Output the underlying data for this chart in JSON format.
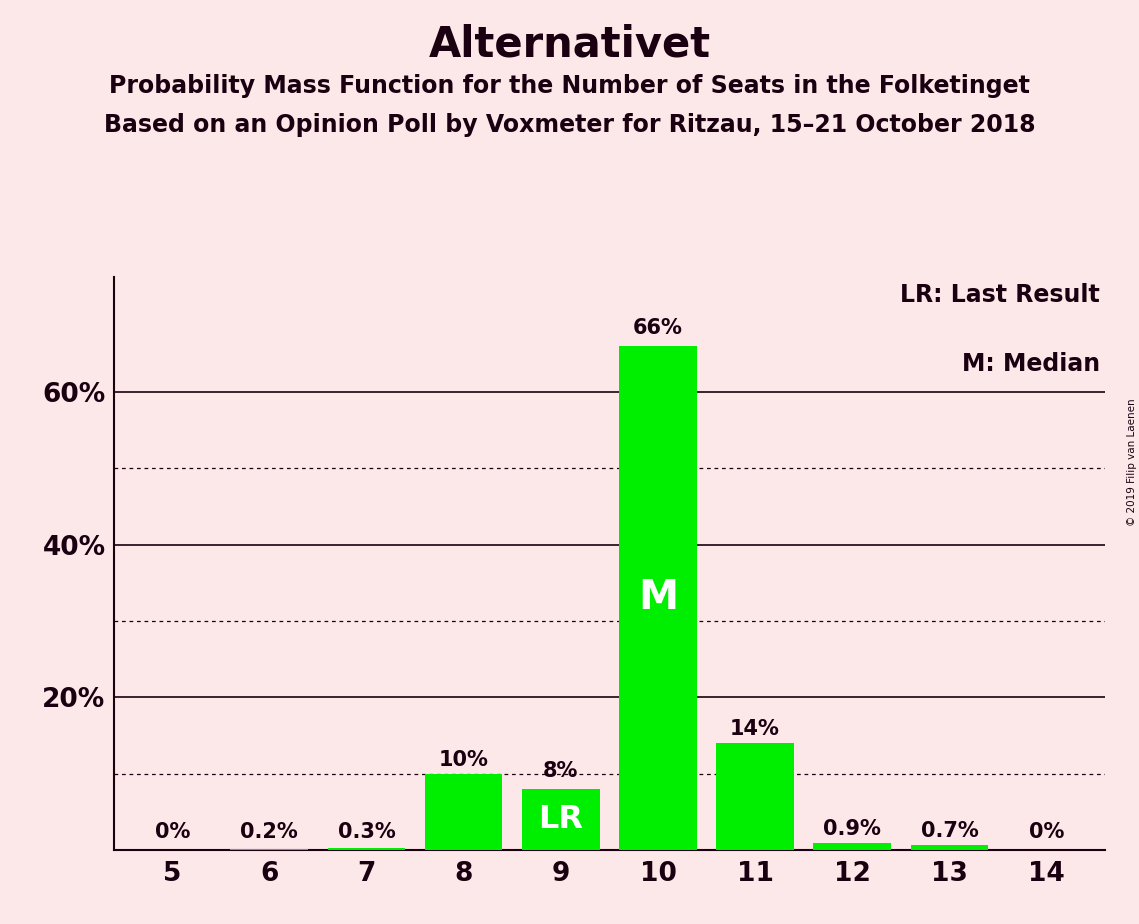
{
  "title": "Alternativet",
  "subtitle1": "Probability Mass Function for the Number of Seats in the Folketinget",
  "subtitle2": "Based on an Opinion Poll by Voxmeter for Ritzau, 15–21 October 2018",
  "watermark": "© 2019 Filip van Laenen",
  "categories": [
    5,
    6,
    7,
    8,
    9,
    10,
    11,
    12,
    13,
    14
  ],
  "values": [
    0.0,
    0.2,
    0.3,
    10.0,
    8.0,
    66.0,
    14.0,
    0.9,
    0.7,
    0.0
  ],
  "labels": [
    "0%",
    "0.2%",
    "0.3%",
    "10%",
    "8%",
    "66%",
    "14%",
    "0.9%",
    "0.7%",
    "0%"
  ],
  "bar_color": "#00ee00",
  "background_color": "#fce8e8",
  "text_color": "#1a0010",
  "title_fontsize": 30,
  "subtitle_fontsize": 17,
  "label_fontsize": 15,
  "tick_fontsize": 17,
  "legend_fontsize": 17,
  "median_bar": 10,
  "lr_bar": 9,
  "median_label": "M",
  "lr_label": "LR",
  "legend_text1": "LR: Last Result",
  "legend_text2": "M: Median",
  "solid_gridlines": [
    20,
    40,
    60
  ],
  "dotted_gridlines": [
    10,
    30,
    50
  ],
  "ylim": [
    0,
    75
  ],
  "ytick_positions": [
    20,
    40,
    60
  ],
  "ytick_labels": [
    "20%",
    "40%",
    "60%"
  ]
}
